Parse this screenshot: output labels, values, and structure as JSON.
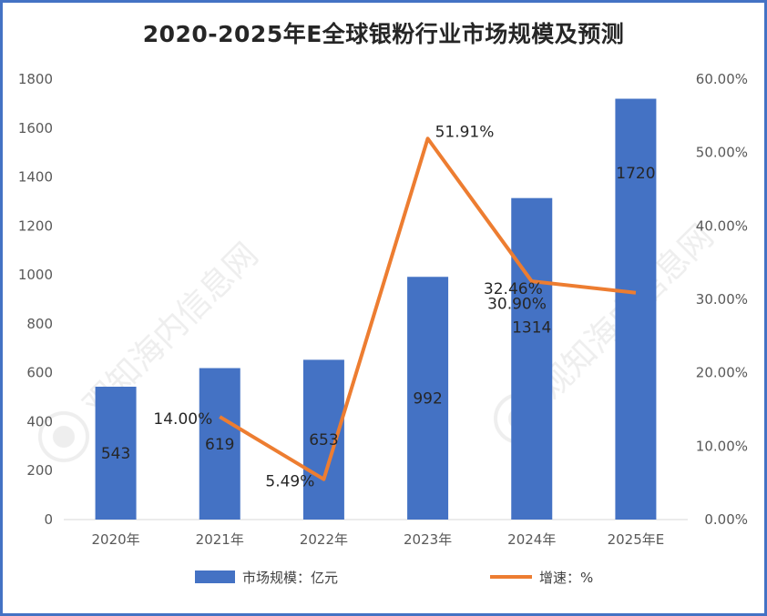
{
  "chart_data": {
    "type": "bar+line",
    "title": "2020-2025年E全球银粉行业市场规模及预测",
    "categories": [
      "2020年",
      "2021年",
      "2022年",
      "2023年",
      "2024年",
      "2025年E"
    ],
    "series": [
      {
        "name": "市场规模：亿元",
        "type": "bar",
        "axis": "left",
        "values": [
          543,
          619,
          653,
          992,
          1314,
          1720
        ],
        "labels": [
          "543",
          "619",
          "653",
          "992",
          "1314",
          "1720"
        ],
        "color": "#4472c4"
      },
      {
        "name": "增速：%",
        "type": "line",
        "axis": "right",
        "values": [
          null,
          14.0,
          5.49,
          51.91,
          32.46,
          30.9
        ],
        "labels": [
          "",
          "14.00%",
          "5.49%",
          "51.91%",
          "32.46%",
          "30.90%"
        ],
        "color": "#ed7d31"
      }
    ],
    "y_left": {
      "min": 0,
      "max": 1800,
      "step": 200,
      "ticks": [
        "0",
        "200",
        "400",
        "600",
        "800",
        "1000",
        "1200",
        "1400",
        "1600",
        "1800"
      ]
    },
    "y_right": {
      "min": 0,
      "max": 60,
      "step": 10,
      "ticks": [
        "0.00%",
        "10.00%",
        "20.00%",
        "30.00%",
        "40.00%",
        "50.00%",
        "60.00%"
      ]
    },
    "grid": false,
    "legend_position": "bottom",
    "watermark": "观知海内信息网 DONGFANGQB.COM"
  }
}
